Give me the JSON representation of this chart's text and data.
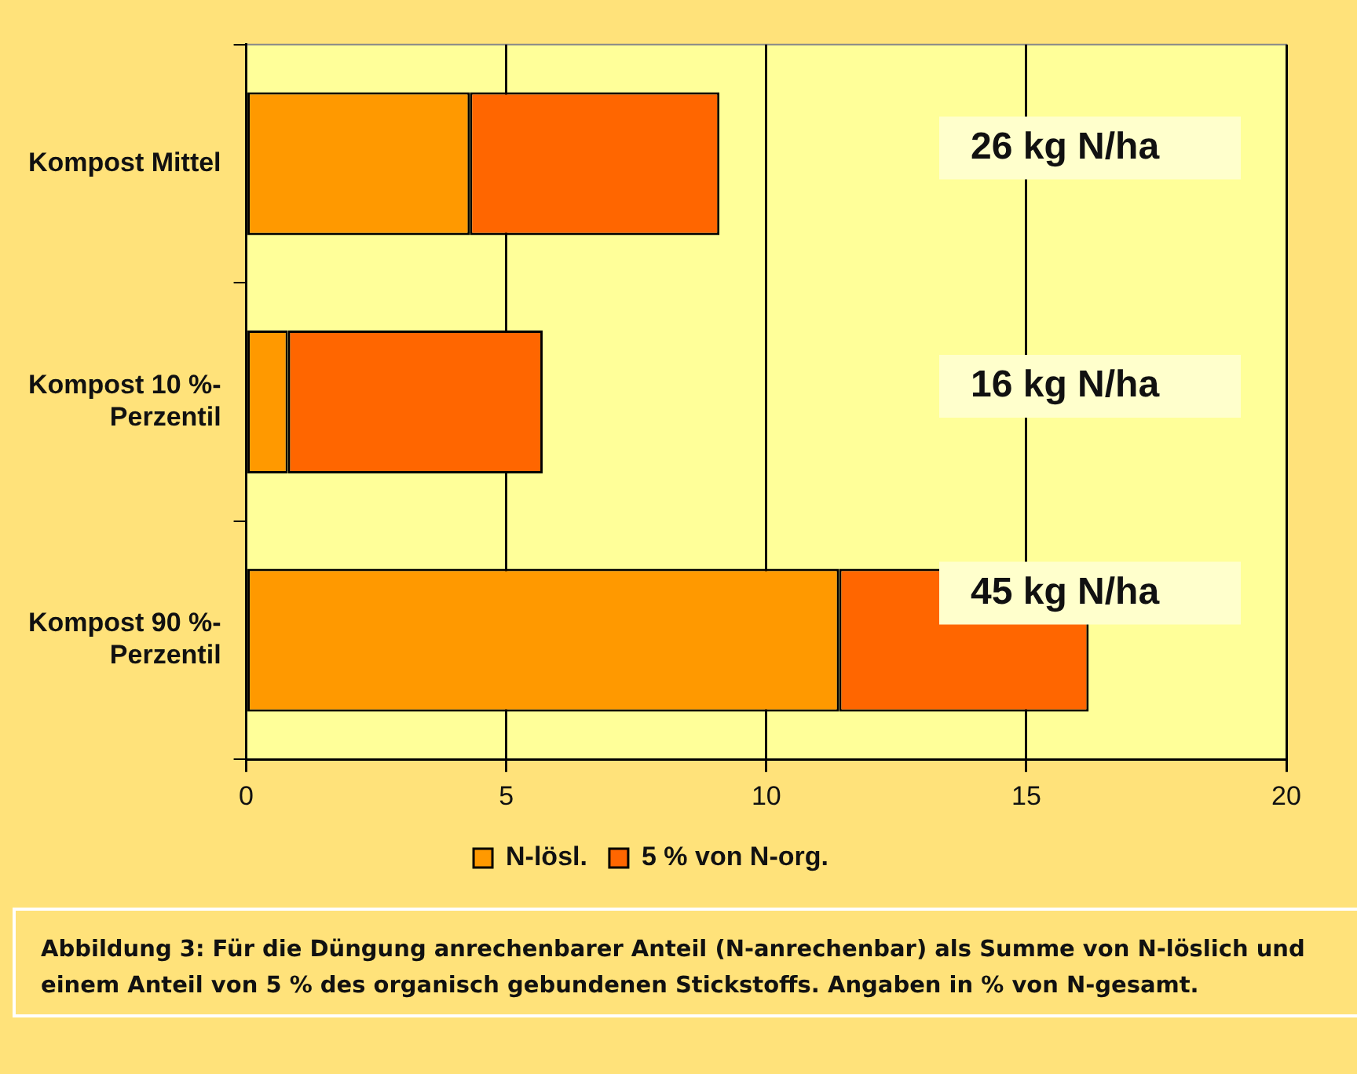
{
  "chart_data": {
    "type": "bar",
    "orientation": "horizontal",
    "stacked": true,
    "categories": [
      "Kompost Mittel",
      "Kompost 10 %-\nPerzentil",
      "Kompost 90 %-\nPerzentil"
    ],
    "series": [
      {
        "name": "N-lösl.",
        "color": "#ff9900",
        "values": [
          4.3,
          0.8,
          11.4
        ]
      },
      {
        "name": "5 % von N-org.",
        "color": "#ff6600",
        "values": [
          4.8,
          4.9,
          4.8
        ]
      }
    ],
    "xlim": [
      0,
      20
    ],
    "xticks": [
      0,
      5,
      10,
      15,
      20
    ],
    "grid": "x",
    "legend": "bottom",
    "annotations": [
      "26 kg N/ha",
      "16 kg N/ha",
      "45 kg N/ha",
      "Abbildung 3: Für die Düngung anrechenbarer Anteil (N-anrechenbar) als Summe von N-löslich und einem Anteil von 5 % des organisch gebundenen Stickstoffs. Angaben in % von N-gesamt."
    ]
  }
}
